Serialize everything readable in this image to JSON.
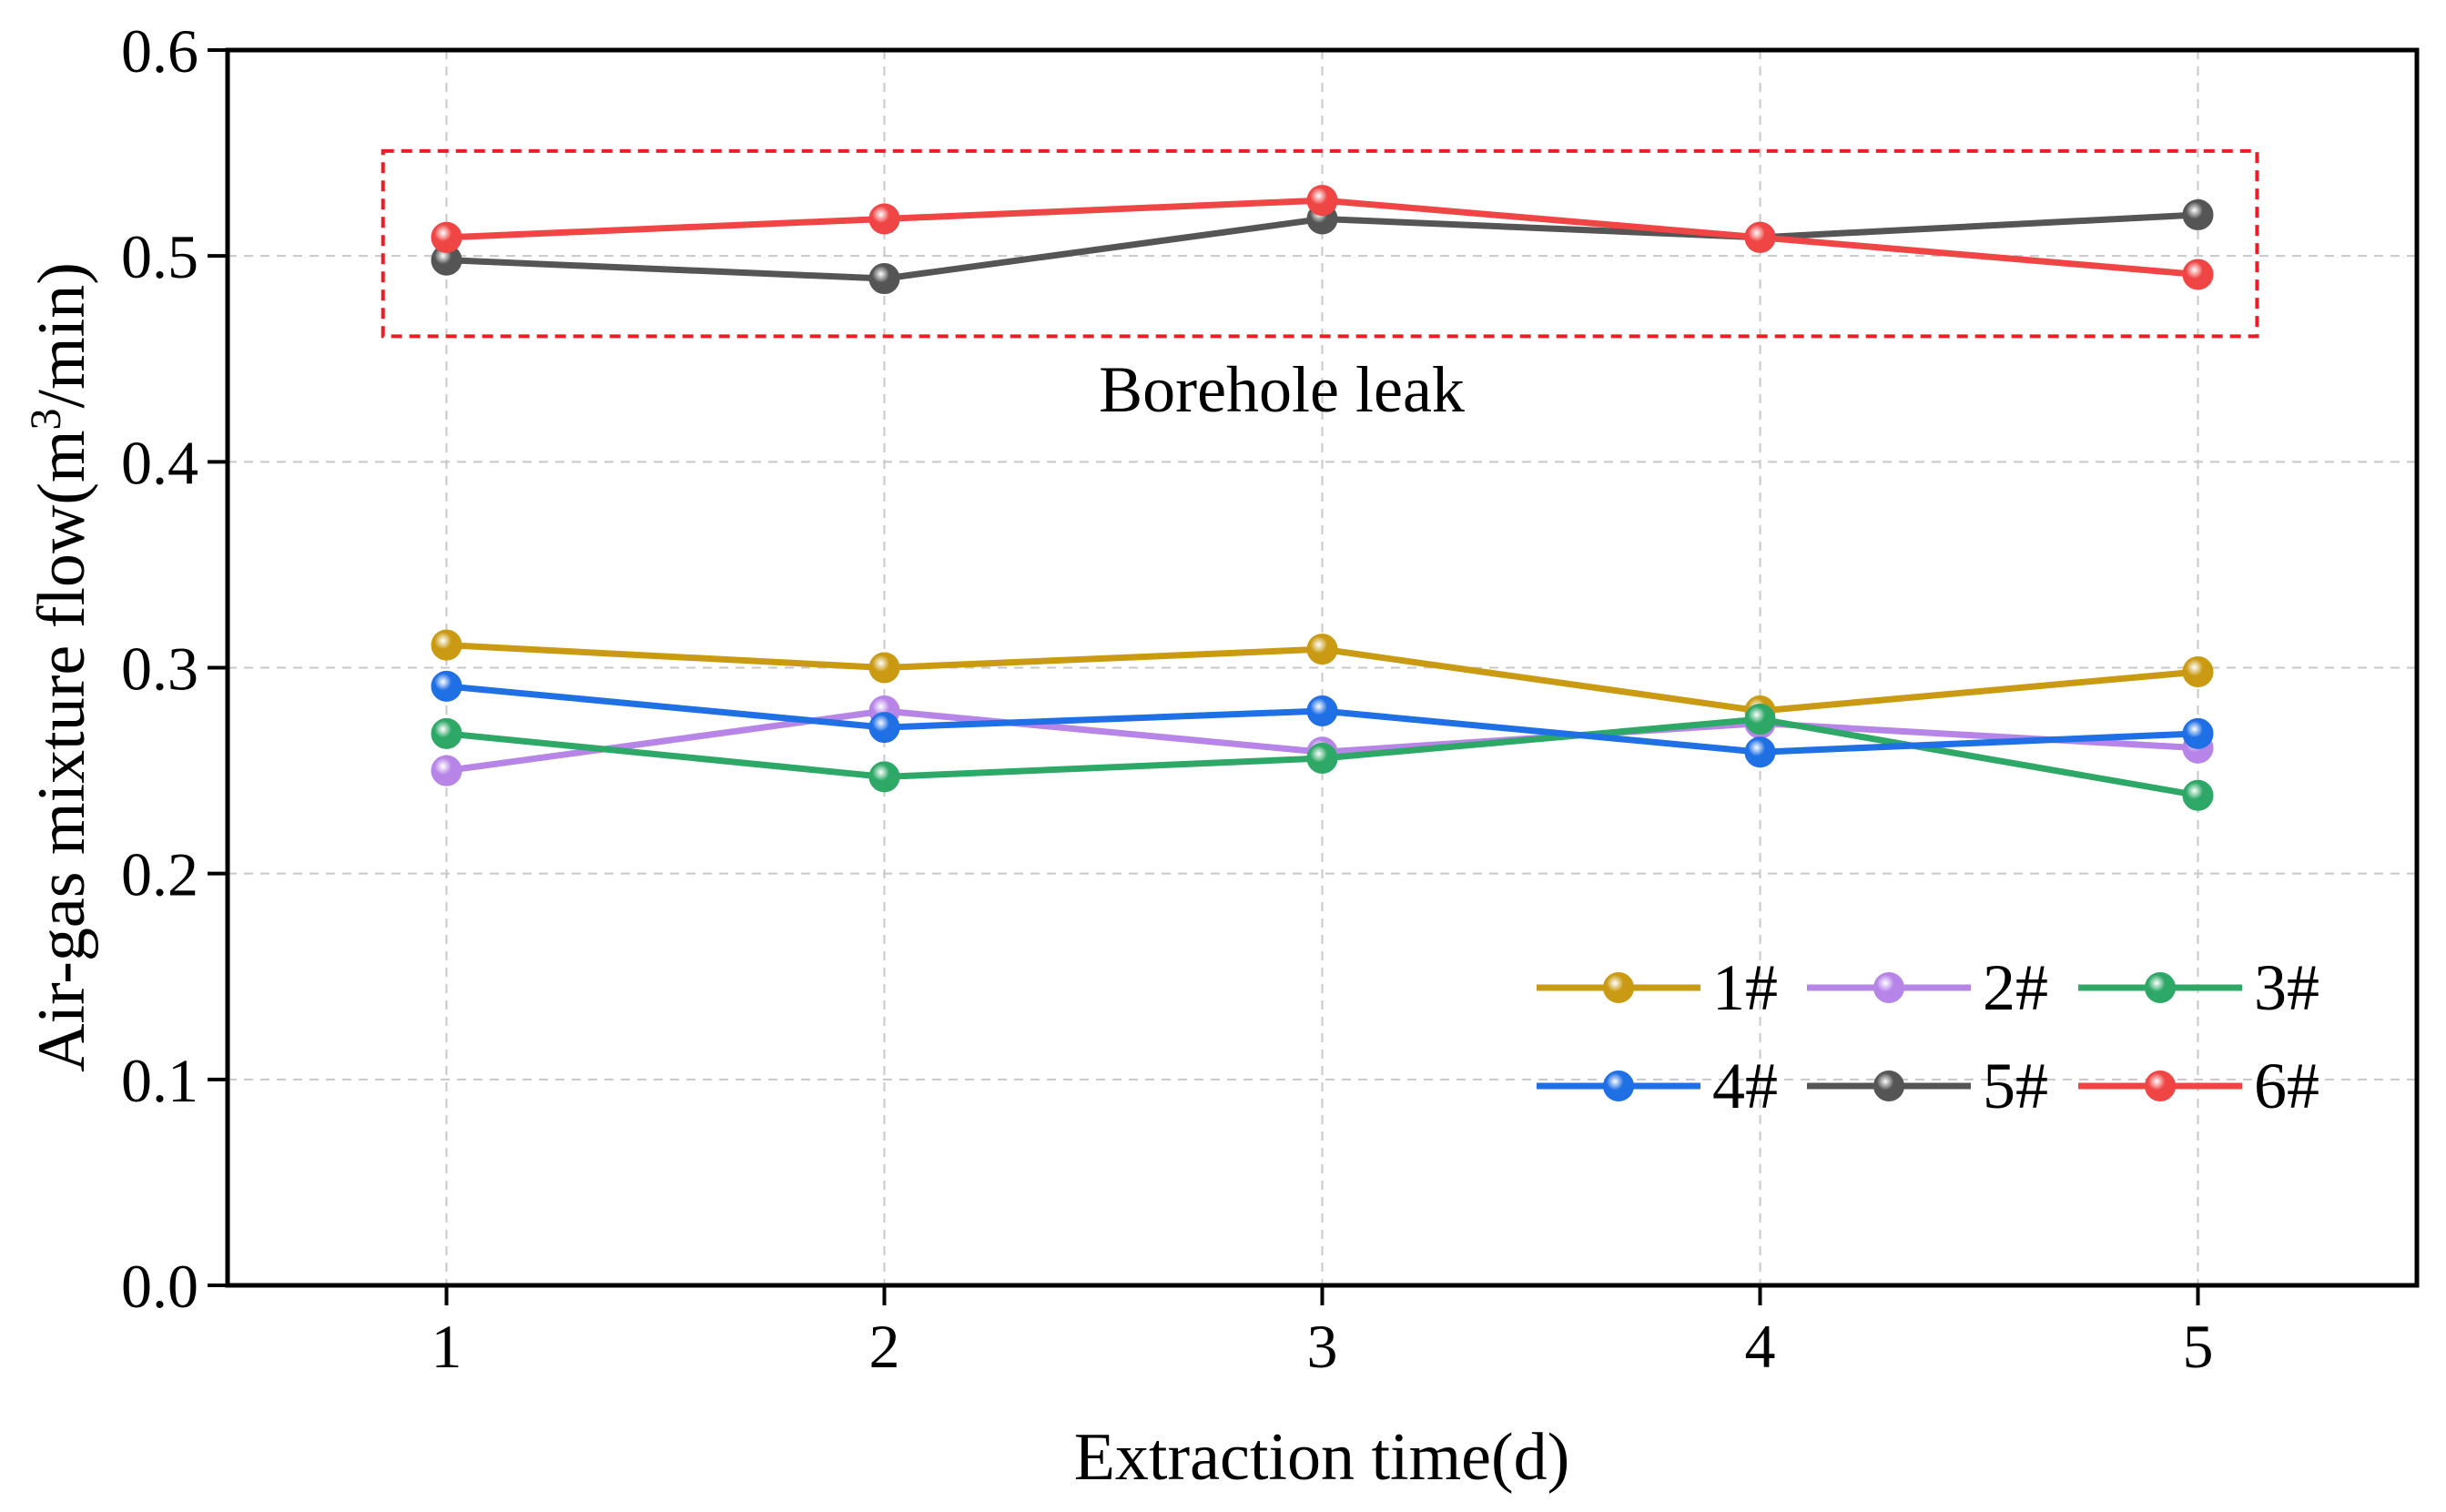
{
  "chart_data": {
    "type": "line",
    "title": "",
    "xlabel": "Extraction time(d)",
    "ylabel_main": "Air-gas mixture flow(m",
    "ylabel_sup": "3",
    "ylabel_end": "/min)",
    "x": [
      1,
      2,
      3,
      4,
      5
    ],
    "x_ticks": [
      "1",
      "2",
      "3",
      "4",
      "5"
    ],
    "xlim": [
      0.5,
      5.5
    ],
    "y_ticks": [
      "0.0",
      "0.1",
      "0.2",
      "0.3",
      "0.4",
      "0.5",
      "0.6"
    ],
    "ylim": [
      0.0,
      0.6
    ],
    "grid": true,
    "legend_position": "bottom-right",
    "series": [
      {
        "name": "1#",
        "color": "#C99A12",
        "values": [
          0.311,
          0.3,
          0.309,
          0.279,
          0.298
        ]
      },
      {
        "name": "2#",
        "color": "#B784E8",
        "values": [
          0.25,
          0.279,
          0.259,
          0.273,
          0.261
        ]
      },
      {
        "name": "3#",
        "color": "#2EA866",
        "values": [
          0.268,
          0.247,
          0.256,
          0.275,
          0.238
        ]
      },
      {
        "name": "4#",
        "color": "#1F6FE5",
        "values": [
          0.291,
          0.271,
          0.279,
          0.259,
          0.268
        ]
      },
      {
        "name": "5#",
        "color": "#555555",
        "values": [
          0.498,
          0.489,
          0.518,
          0.509,
          0.52
        ]
      },
      {
        "name": "6#",
        "color": "#F04545",
        "values": [
          0.509,
          0.518,
          0.527,
          0.509,
          0.491
        ]
      }
    ],
    "annotation": {
      "text": "Borehole leak",
      "color": "#EE1C25",
      "box_x_range": [
        0.855,
        5.135
      ],
      "box_y_range": [
        0.461,
        0.551
      ]
    }
  }
}
